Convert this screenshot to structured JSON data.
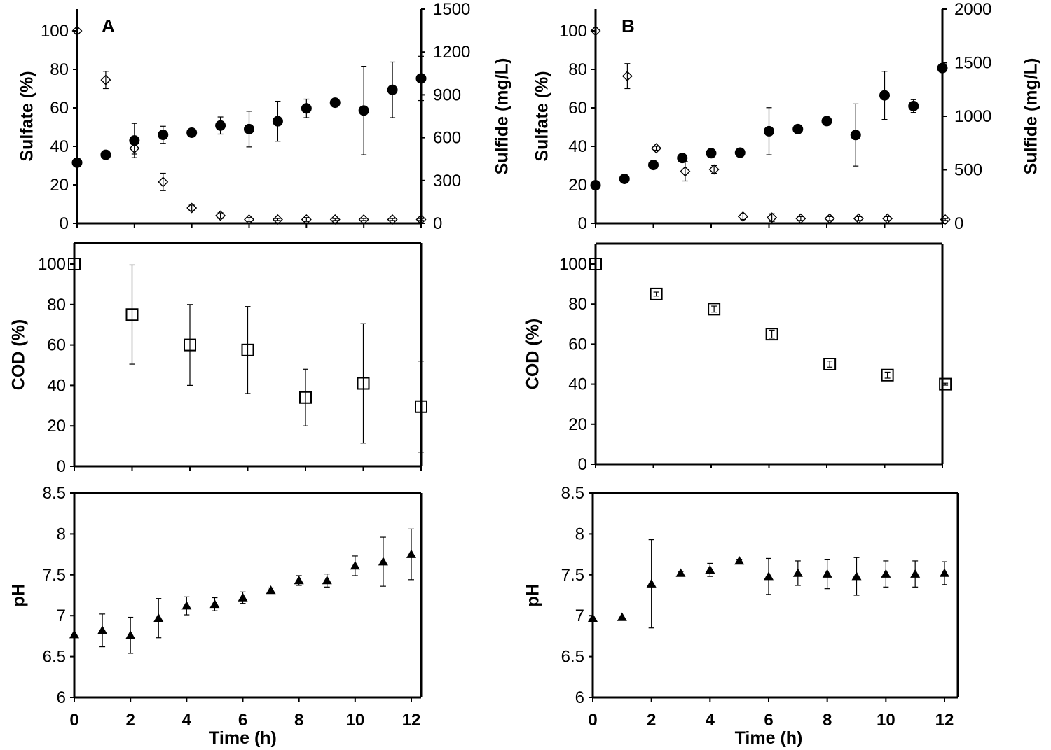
{
  "figure": {
    "xlabel": "Time (h)",
    "x_ticks": [
      0,
      2,
      4,
      6,
      8,
      10,
      12
    ]
  },
  "chart_data": [
    {
      "id": "A-sulfate",
      "panel_label": "A",
      "type": "scatter",
      "ylabel": "Sulfate (%)",
      "y2label": "Sulfide (mg/L)",
      "ylim": [
        0,
        110
      ],
      "y_ticks": [
        0,
        20,
        40,
        60,
        80,
        100
      ],
      "y2lim": [
        0,
        1500
      ],
      "y2_ticks": [
        0,
        300,
        600,
        900,
        1200,
        1500
      ],
      "xlim": [
        0,
        12.5
      ],
      "series": [
        {
          "marker": "diamond",
          "axis": "left",
          "points": [
            [
              0,
              100,
              0
            ],
            [
              1,
              74.5,
              4.5
            ],
            [
              2,
              39,
              3
            ],
            [
              3,
              21.5,
              4.5
            ],
            [
              4,
              8,
              1.5
            ],
            [
              5,
              4,
              1.5
            ],
            [
              6,
              2,
              1
            ],
            [
              7,
              2,
              0.5
            ],
            [
              8,
              2,
              1
            ],
            [
              9,
              2,
              0.5
            ],
            [
              10,
              2,
              0.5
            ],
            [
              11,
              2,
              0.5
            ],
            [
              12,
              2,
              0.5
            ]
          ]
        },
        {
          "marker": "circle",
          "axis": "right",
          "points": [
            [
              0,
              425,
              0
            ],
            [
              1,
              480,
              0
            ],
            [
              2,
              580,
              120
            ],
            [
              3,
              620,
              60
            ],
            [
              4,
              635,
              0
            ],
            [
              5,
              685,
              60
            ],
            [
              6,
              660,
              125
            ],
            [
              7,
              715,
              140
            ],
            [
              8,
              805,
              65
            ],
            [
              9,
              845,
              0
            ],
            [
              10,
              790,
              310
            ],
            [
              11,
              935,
              195
            ],
            [
              12,
              1015,
              155
            ]
          ]
        }
      ]
    },
    {
      "id": "B-sulfate",
      "panel_label": "B",
      "type": "scatter",
      "ylabel": "Sulfate (%)",
      "y2label": "Sulfide (mg/L)",
      "ylim": [
        0,
        110
      ],
      "y_ticks": [
        0,
        20,
        40,
        60,
        80,
        100
      ],
      "y2lim": [
        0,
        2000
      ],
      "y2_ticks": [
        0,
        500,
        1000,
        1500,
        2000
      ],
      "xlim": [
        0,
        12.5
      ],
      "series": [
        {
          "marker": "diamond",
          "axis": "left",
          "points": [
            [
              0,
              100,
              0
            ],
            [
              1.1,
              76.5,
              6.5
            ],
            [
              2.1,
              39,
              1
            ],
            [
              3.1,
              27,
              5
            ],
            [
              4.1,
              28,
              2
            ],
            [
              5.1,
              3.5,
              1.5
            ],
            [
              6.1,
              3,
              2
            ],
            [
              7.1,
              2.5,
              1
            ],
            [
              8.1,
              2.5,
              1
            ],
            [
              9.1,
              2.5,
              1
            ],
            [
              10.1,
              2.5,
              1
            ],
            [
              12.1,
              2,
              0.5
            ]
          ]
        },
        {
          "marker": "circle",
          "axis": "right",
          "points": [
            [
              0,
              355,
              0
            ],
            [
              1,
              415,
              0
            ],
            [
              2,
              545,
              0
            ],
            [
              3,
              610,
              0
            ],
            [
              4,
              655,
              0
            ],
            [
              5,
              660,
              0
            ],
            [
              6,
              860,
              220
            ],
            [
              7,
              880,
              25
            ],
            [
              8,
              955,
              0
            ],
            [
              9,
              825,
              290
            ],
            [
              10,
              1195,
              225
            ],
            [
              11,
              1095,
              60
            ],
            [
              12,
              1450,
              0
            ]
          ]
        }
      ]
    },
    {
      "id": "A-cod",
      "type": "scatter",
      "ylabel": "COD (%)",
      "ylim": [
        0,
        100
      ],
      "y_ticks": [
        0,
        20,
        40,
        60,
        80,
        100
      ],
      "xlim": [
        0,
        12.5
      ],
      "series": [
        {
          "marker": "square",
          "axis": "left",
          "points": [
            [
              0,
              100,
              0
            ],
            [
              2,
              75,
              24.5
            ],
            [
              4,
              60,
              20
            ],
            [
              6,
              57.5,
              21.5
            ],
            [
              8,
              34,
              14
            ],
            [
              10,
              41,
              29.5
            ],
            [
              12,
              29.5,
              22.5
            ]
          ]
        }
      ]
    },
    {
      "id": "B-cod",
      "type": "scatter",
      "ylabel": "COD  (%)",
      "ylim": [
        0,
        100
      ],
      "y_ticks": [
        0,
        20,
        40,
        60,
        80,
        100
      ],
      "xlim": [
        0,
        12.5
      ],
      "series": [
        {
          "marker": "square",
          "axis": "left",
          "points": [
            [
              0,
              100,
              0
            ],
            [
              2.1,
              85,
              1
            ],
            [
              4.1,
              77.5,
              1.5
            ],
            [
              6.1,
              65,
              2
            ],
            [
              8.1,
              50,
              1.5
            ],
            [
              10.1,
              44.5,
              1.5
            ],
            [
              12.1,
              40,
              0.5
            ]
          ]
        }
      ]
    },
    {
      "id": "A-ph",
      "type": "scatter",
      "ylabel": "pH",
      "ylim": [
        6,
        8.5
      ],
      "y_ticks": [
        "6",
        "6.5",
        "7",
        "7.5",
        "8",
        "8.5"
      ],
      "xlim": [
        0,
        12.5
      ],
      "series": [
        {
          "marker": "triangle",
          "axis": "left",
          "points": [
            [
              0,
              6.77,
              0
            ],
            [
              1,
              6.82,
              0.2
            ],
            [
              2,
              6.76,
              0.22
            ],
            [
              3,
              6.97,
              0.24
            ],
            [
              4,
              7.12,
              0.11
            ],
            [
              5,
              7.14,
              0.08
            ],
            [
              6,
              7.22,
              0.07
            ],
            [
              7,
              7.31,
              0.03
            ],
            [
              8,
              7.43,
              0.06
            ],
            [
              9,
              7.43,
              0.08
            ],
            [
              10,
              7.61,
              0.12
            ],
            [
              11,
              7.66,
              0.3
            ],
            [
              12,
              7.75,
              0.31
            ]
          ]
        }
      ]
    },
    {
      "id": "B-ph",
      "type": "scatter",
      "ylabel": "pH",
      "ylim": [
        6,
        8.5
      ],
      "y_ticks": [
        "6",
        "6.5",
        "7",
        "7.5",
        "8",
        "8.5"
      ],
      "xlim": [
        0,
        12.5
      ],
      "series": [
        {
          "marker": "triangle",
          "axis": "left",
          "points": [
            [
              0,
              6.97,
              0
            ],
            [
              1,
              6.98,
              0
            ],
            [
              2,
              7.39,
              0.54
            ],
            [
              3,
              7.52,
              0.02
            ],
            [
              4,
              7.56,
              0.08
            ],
            [
              5,
              7.67,
              0.02
            ],
            [
              6,
              7.48,
              0.22
            ],
            [
              7,
              7.52,
              0.15
            ],
            [
              8,
              7.51,
              0.18
            ],
            [
              9,
              7.48,
              0.23
            ],
            [
              10,
              7.51,
              0.16
            ],
            [
              11,
              7.51,
              0.16
            ],
            [
              12,
              7.52,
              0.14
            ]
          ]
        }
      ]
    }
  ]
}
